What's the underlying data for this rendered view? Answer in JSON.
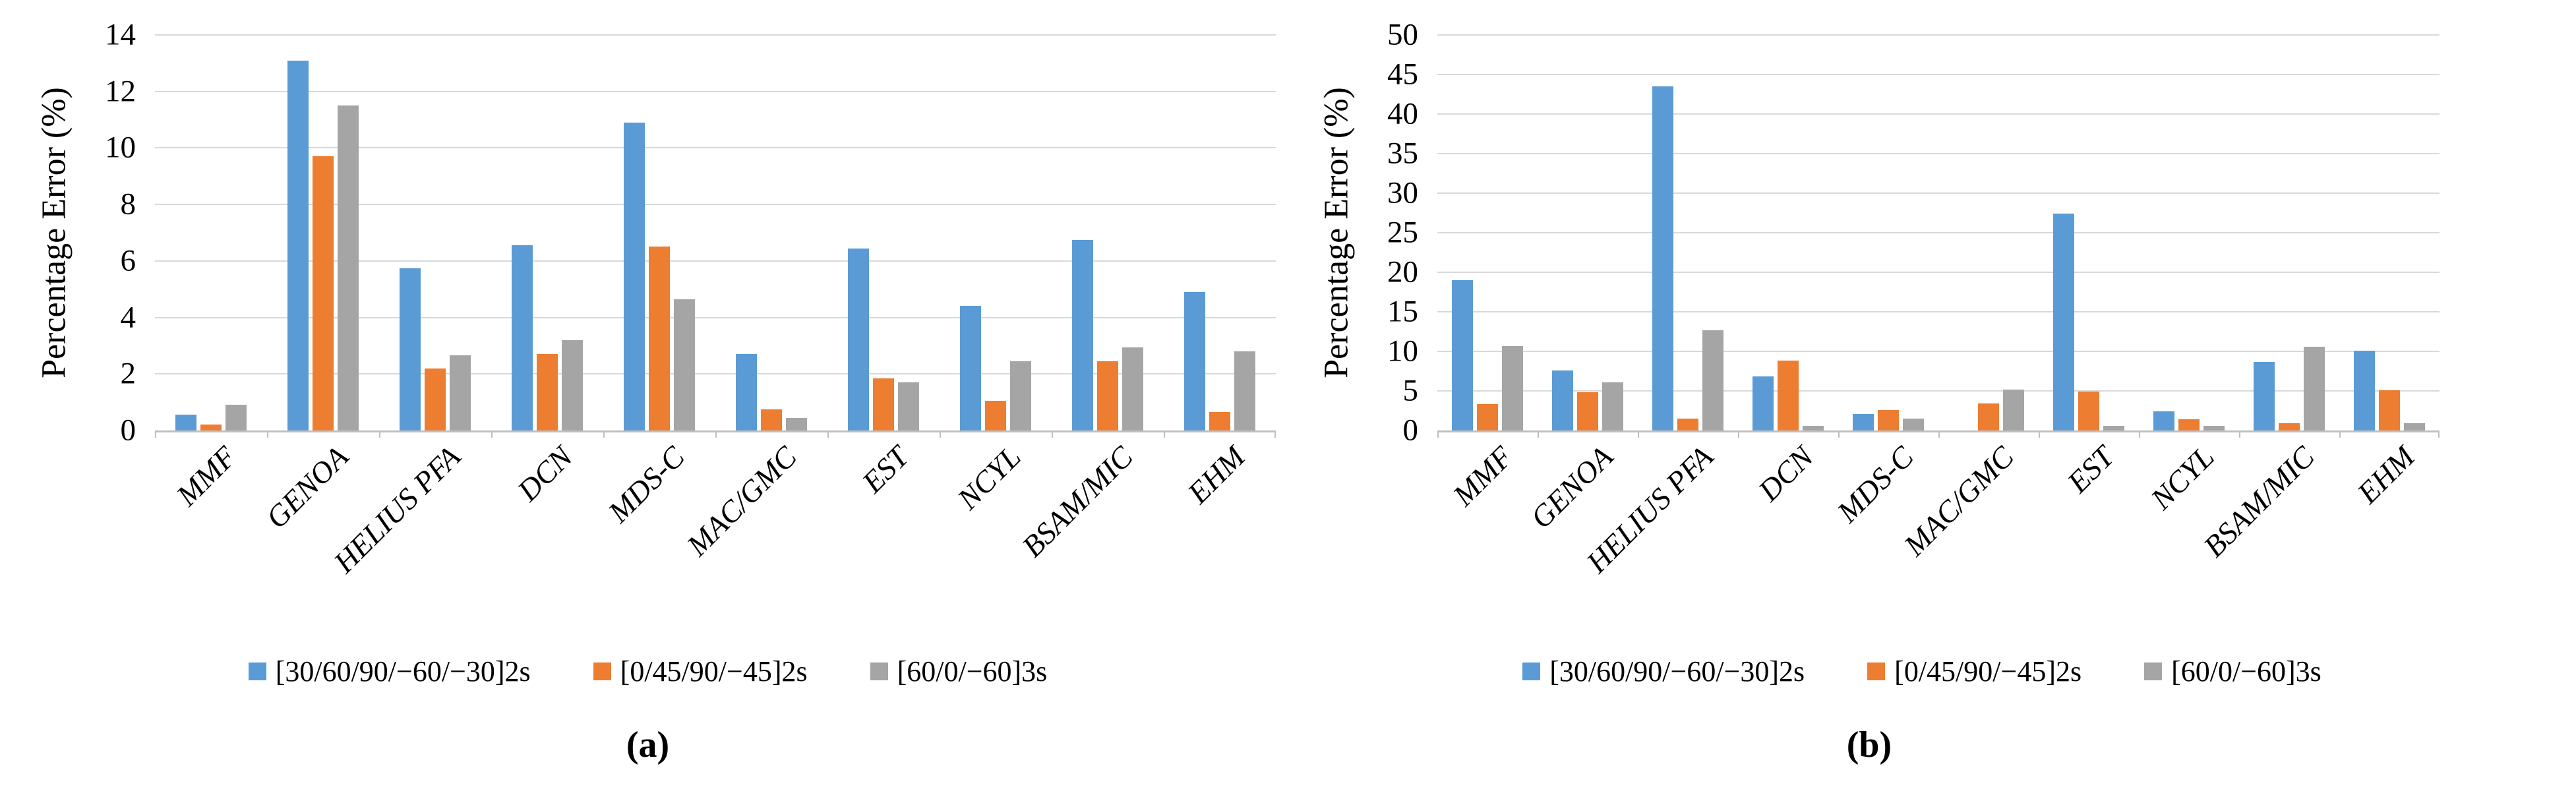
{
  "chart_data": [
    {
      "id": "a",
      "type": "bar",
      "caption": "(a)",
      "ylabel": "Percentage Error (%)",
      "ylim": [
        0,
        14
      ],
      "ytick_step": 2,
      "grid": true,
      "legend_position": "bottom",
      "categories": [
        "MMF",
        "GENOA",
        "HELIUS PFA",
        "DCN",
        "MDS-C",
        "MAC/GMC",
        "EST",
        "NCYL",
        "BSAM/MIC",
        "EHM"
      ],
      "series": [
        {
          "name": "[30/60/90/−60/−30]2s",
          "color": "#5b9bd5",
          "values": [
            0.55,
            13.1,
            5.75,
            6.55,
            10.9,
            2.7,
            6.45,
            4.4,
            6.75,
            4.9
          ]
        },
        {
          "name": "[0/45/90/−45]2s",
          "color": "#ed7d31",
          "values": [
            0.2,
            9.7,
            2.2,
            2.7,
            6.5,
            0.75,
            1.85,
            1.05,
            2.45,
            0.65
          ]
        },
        {
          "name": "[60/0/−60]3s",
          "color": "#a5a5a5",
          "values": [
            0.9,
            11.5,
            2.65,
            3.2,
            4.65,
            0.45,
            1.7,
            2.45,
            2.95,
            2.8
          ]
        }
      ]
    },
    {
      "id": "b",
      "type": "bar",
      "caption": "(b)",
      "ylabel": "Percentage Error (%)",
      "ylim": [
        0,
        50
      ],
      "ytick_step": 5,
      "grid": true,
      "legend_position": "bottom",
      "categories": [
        "MMF",
        "GENOA",
        "HELIUS PFA",
        "DCN",
        "MDS-C",
        "MAC/GMC",
        "EST",
        "NCYL",
        "BSAM/MIC",
        "EHM"
      ],
      "series": [
        {
          "name": "[30/60/90/−60/−30]2s",
          "color": "#5b9bd5",
          "values": [
            19.0,
            7.6,
            43.5,
            6.8,
            2.1,
            0,
            27.4,
            2.45,
            8.65,
            10.1
          ]
        },
        {
          "name": "[0/45/90/−45]2s",
          "color": "#ed7d31",
          "values": [
            3.3,
            4.85,
            1.5,
            8.8,
            2.6,
            3.4,
            4.9,
            1.4,
            0.9,
            5.1
          ]
        },
        {
          "name": "[60/0/−60]3s",
          "color": "#a5a5a5",
          "values": [
            10.7,
            6.1,
            12.7,
            0.6,
            1.5,
            5.2,
            0.6,
            0.6,
            10.6,
            0.9
          ]
        }
      ]
    }
  ]
}
